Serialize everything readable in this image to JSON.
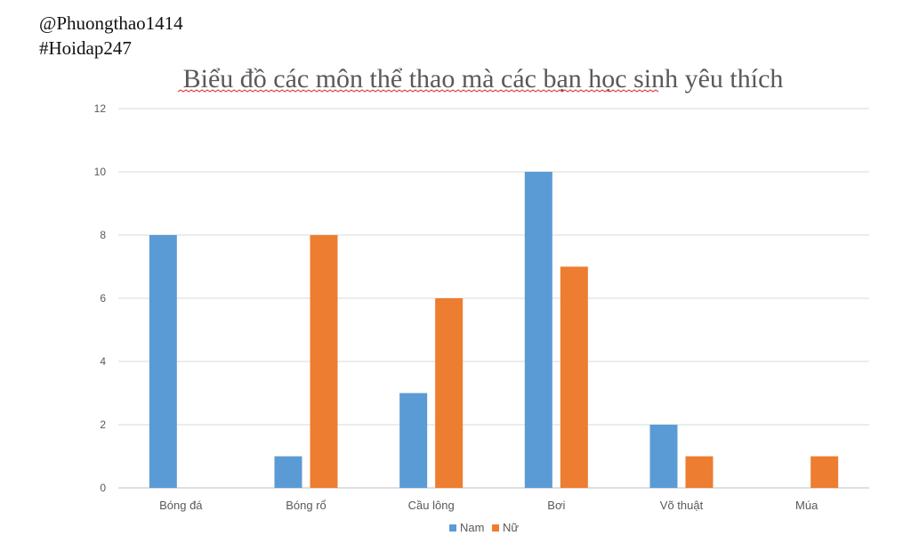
{
  "watermark": {
    "line1": "@Phuongthao1414",
    "line2": "#Hoidap247"
  },
  "chart_data": {
    "type": "bar",
    "title": "Biểu đồ các môn thể thao mà các bạn học sinh yêu thích",
    "categories": [
      "Bóng đá",
      "Bóng rổ",
      "Cầu lông",
      "Bơi",
      "Võ thuật",
      "Múa"
    ],
    "series": [
      {
        "name": "Nam",
        "color": "#5b9bd5",
        "values": [
          8,
          1,
          3,
          10,
          2,
          0
        ]
      },
      {
        "name": "Nữ",
        "color": "#ed7d31",
        "values": [
          0,
          8,
          6,
          7,
          1,
          1
        ]
      }
    ],
    "yticks": [
      "0",
      "2",
      "4",
      "6",
      "8",
      "10",
      "12"
    ],
    "ylim": [
      0,
      12
    ],
    "grid": true,
    "legend": "bottom-center",
    "xlabel": "",
    "ylabel": ""
  }
}
